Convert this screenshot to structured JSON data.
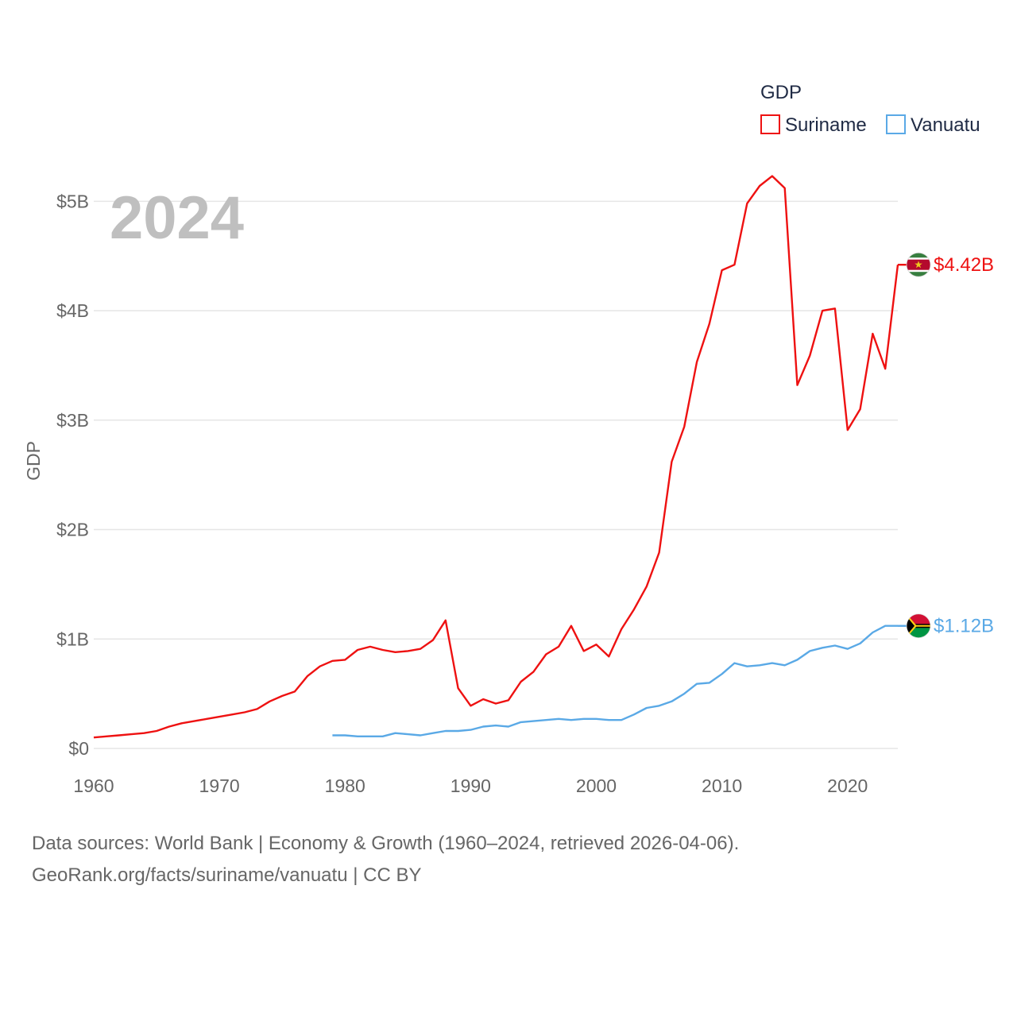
{
  "chart_data": {
    "type": "line",
    "legend_title": "GDP",
    "ylabel": "GDP",
    "year_overlay": "2024",
    "xlim": [
      1960,
      2024
    ],
    "ylim": [
      0,
      5.3
    ],
    "x_ticks": [
      1960,
      1970,
      1980,
      1990,
      2000,
      2010,
      2020
    ],
    "x_tick_labels": [
      "1960",
      "1970",
      "1980",
      "1990",
      "2000",
      "2010",
      "2020"
    ],
    "y_ticks": [
      0,
      1,
      2,
      3,
      4,
      5
    ],
    "y_tick_labels": [
      "$0",
      "$1B",
      "$2B",
      "$3B",
      "$4B",
      "$5B"
    ],
    "unit": "billion USD",
    "series": [
      {
        "name": "Suriname",
        "color": "#ee1111",
        "end_label": "$4.42B",
        "flag": "suriname-flag-icon",
        "x": [
          1960,
          1961,
          1962,
          1963,
          1964,
          1965,
          1966,
          1967,
          1968,
          1969,
          1970,
          1971,
          1972,
          1973,
          1974,
          1975,
          1976,
          1977,
          1978,
          1979,
          1980,
          1981,
          1982,
          1983,
          1984,
          1985,
          1986,
          1987,
          1988,
          1989,
          1990,
          1991,
          1992,
          1993,
          1994,
          1995,
          1996,
          1997,
          1998,
          1999,
          2000,
          2001,
          2002,
          2003,
          2004,
          2005,
          2006,
          2007,
          2008,
          2009,
          2010,
          2011,
          2012,
          2013,
          2014,
          2015,
          2016,
          2017,
          2018,
          2019,
          2020,
          2021,
          2022,
          2023,
          2024
        ],
        "values": [
          0.1,
          0.11,
          0.12,
          0.13,
          0.14,
          0.16,
          0.2,
          0.23,
          0.25,
          0.27,
          0.29,
          0.31,
          0.33,
          0.36,
          0.43,
          0.48,
          0.52,
          0.66,
          0.75,
          0.8,
          0.81,
          0.9,
          0.93,
          0.9,
          0.88,
          0.89,
          0.91,
          0.99,
          1.17,
          0.55,
          0.39,
          0.45,
          0.41,
          0.44,
          0.61,
          0.7,
          0.86,
          0.93,
          1.12,
          0.89,
          0.95,
          0.84,
          1.09,
          1.27,
          1.48,
          1.79,
          2.62,
          2.94,
          3.53,
          3.88,
          4.37,
          4.42,
          4.98,
          5.14,
          5.23,
          5.12,
          3.32,
          3.59,
          4.0,
          4.02,
          2.91,
          3.1,
          3.79,
          3.47,
          4.42
        ]
      },
      {
        "name": "Vanuatu",
        "color": "#5aa9e6",
        "end_label": "$1.12B",
        "flag": "vanuatu-flag-icon",
        "x": [
          1979,
          1980,
          1981,
          1982,
          1983,
          1984,
          1985,
          1986,
          1987,
          1988,
          1989,
          1990,
          1991,
          1992,
          1993,
          1994,
          1995,
          1996,
          1997,
          1998,
          1999,
          2000,
          2001,
          2002,
          2003,
          2004,
          2005,
          2006,
          2007,
          2008,
          2009,
          2010,
          2011,
          2012,
          2013,
          2014,
          2015,
          2016,
          2017,
          2018,
          2019,
          2020,
          2021,
          2022,
          2023,
          2024
        ],
        "values": [
          0.12,
          0.12,
          0.11,
          0.11,
          0.11,
          0.14,
          0.13,
          0.12,
          0.14,
          0.16,
          0.16,
          0.17,
          0.2,
          0.21,
          0.2,
          0.24,
          0.25,
          0.26,
          0.27,
          0.26,
          0.27,
          0.27,
          0.26,
          0.26,
          0.31,
          0.37,
          0.39,
          0.43,
          0.5,
          0.59,
          0.6,
          0.68,
          0.78,
          0.75,
          0.76,
          0.78,
          0.76,
          0.81,
          0.89,
          0.92,
          0.94,
          0.91,
          0.96,
          1.06,
          1.12,
          1.12
        ]
      }
    ]
  },
  "footer": {
    "line1": "Data sources: World Bank | Economy & Growth (1960–2024, retrieved 2026-04-06).",
    "line2": "GeoRank.org/facts/suriname/vanuatu | CC BY"
  },
  "colors": {
    "grid": "#e6e6e6",
    "tick_text": "#666666",
    "legend_text": "#1f2a44",
    "year_overlay": "#bfbfbf"
  }
}
